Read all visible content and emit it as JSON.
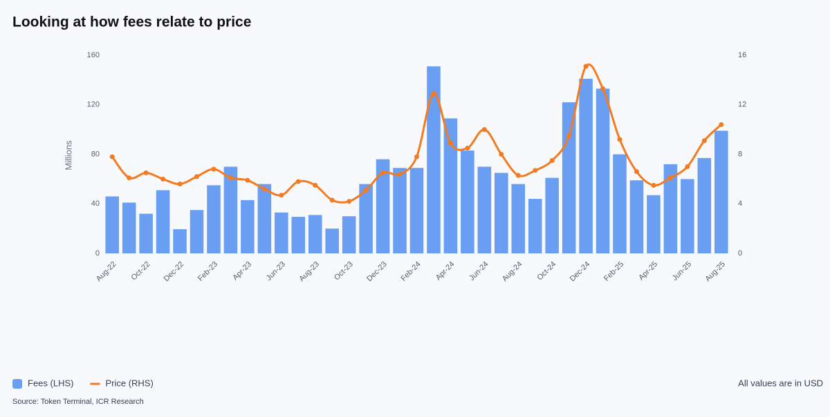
{
  "chart_data": {
    "type": "bar-line",
    "title": "Looking at how fees relate to price",
    "y_label": "Millions",
    "note": "All values are in USD",
    "source": "Source: Token Terminal, ICR Research",
    "categories": [
      "Aug-22",
      null,
      "Oct-22",
      null,
      "Dec-22",
      null,
      "Feb-23",
      null,
      "Apr-23",
      null,
      "Jun-23",
      null,
      "Aug-23",
      null,
      "Oct-23",
      null,
      "Dec-23",
      null,
      "Feb-24",
      null,
      "Apr-24",
      null,
      "Jun-24",
      null,
      "Aug-24",
      null,
      "Oct-24",
      null,
      "Dec-24",
      null,
      "Feb-25",
      null,
      "Apr-25",
      null,
      "Jun-25",
      null,
      "Aug-25"
    ],
    "series": [
      {
        "name": "Fees (LHS)",
        "type": "bar",
        "color": "#6a9ef3",
        "values": [
          46,
          41,
          32,
          51,
          19.5,
          35,
          55,
          70,
          43,
          56,
          33,
          29.5,
          31,
          20,
          30,
          56,
          76,
          69,
          69,
          151,
          109,
          83,
          70,
          65,
          56,
          44,
          61,
          122,
          141,
          133,
          80,
          59,
          47,
          72,
          60,
          77,
          99
        ]
      },
      {
        "name": "Price (RHS)",
        "type": "line",
        "axis": "y2",
        "color": "#f47a20",
        "values": [
          7.8,
          6.1,
          6.5,
          6.0,
          5.6,
          6.2,
          6.8,
          6.1,
          5.9,
          5.2,
          4.7,
          5.8,
          5.5,
          4.3,
          4.2,
          5.1,
          6.5,
          6.4,
          7.8,
          12.9,
          8.9,
          8.5,
          10.0,
          8.0,
          6.3,
          6.7,
          7.5,
          9.5,
          15.1,
          13.3,
          9.2,
          6.6,
          5.5,
          6.1,
          7.0,
          9.1,
          10.4
        ]
      }
    ],
    "ylim": [
      0,
      160
    ],
    "yticks": [
      0,
      40,
      80,
      120,
      160
    ],
    "y2lim": [
      0,
      16
    ],
    "y2ticks": [
      0,
      4,
      8,
      12,
      16
    ],
    "grid": false
  }
}
